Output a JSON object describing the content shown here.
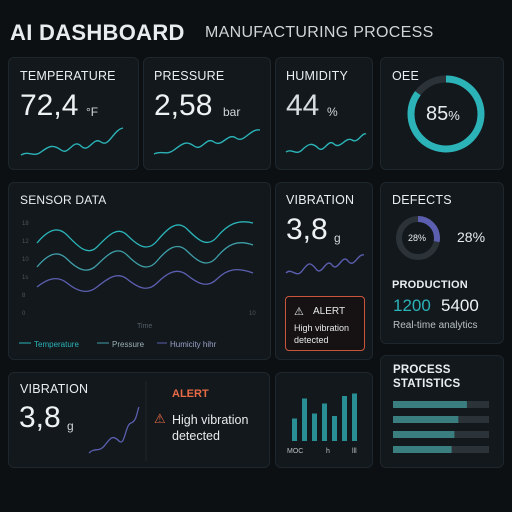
{
  "header": {
    "title": "AI DASHBOARD",
    "subtitle": "MANUFACTURING PROCESS"
  },
  "temperature": {
    "label": "TEMPERATURE",
    "value": "72,4",
    "unit": "°F"
  },
  "pressure": {
    "label": "PRESSURE",
    "value": "2,58",
    "unit": "bar"
  },
  "humidity": {
    "label": "HUMIDITY",
    "value": "44",
    "unit": "%"
  },
  "oee": {
    "label": "OEE",
    "value": "85",
    "unit": "%",
    "fraction": 0.85
  },
  "sensor": {
    "title": "SENSOR DATA",
    "ticks": [
      "18",
      "12",
      "10",
      "1s",
      "8",
      "0",
      "10"
    ],
    "xlabel": "Time",
    "legend": [
      "Temperature",
      "Pressure",
      "Humicity hihr"
    ]
  },
  "vibration_mid": {
    "label": "VIBRATION",
    "value": "3,8",
    "unit": "g"
  },
  "alert_mid": {
    "title": "ALERT",
    "line1": "High vibration",
    "line2": "detected"
  },
  "defects": {
    "label": "DEFECTS",
    "ring_value": "28%",
    "value": "28%",
    "fraction": 0.28
  },
  "production": {
    "label": "PRODUCTION",
    "value1": "1200",
    "value2": "5400",
    "caption": "Real-time analytics"
  },
  "vibration_bottom": {
    "label": "VIBRATION",
    "value": "3,8",
    "unit": "g"
  },
  "alert_bottom": {
    "title": "ALERT",
    "line1": "High vibration",
    "line2": "detected"
  },
  "barchart": {
    "labels": [
      "MOC",
      "h",
      "lll"
    ],
    "values": [
      0.45,
      0.85,
      0.55,
      0.75,
      0.5,
      0.9,
      0.95
    ]
  },
  "process": {
    "title_line1": "PROCESS",
    "title_line2": "STATISTICS",
    "bars": [
      0.77,
      0.68,
      0.64,
      0.61
    ]
  },
  "colors": {
    "accent": "#2bb3b8",
    "accent2": "#3f9ea8",
    "purple": "#5c5fb0",
    "alert": "#e86a47",
    "track": "#2c3338"
  }
}
